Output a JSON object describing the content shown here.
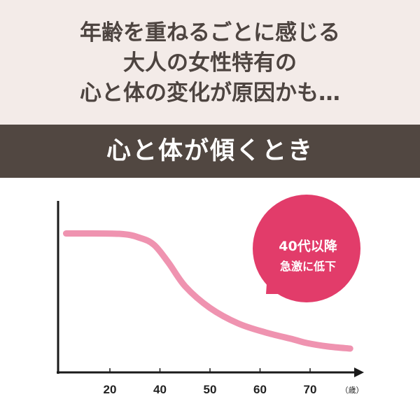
{
  "header": {
    "lines": [
      "年齢を重ねるごとに感じる",
      "大人の女性特有の",
      "心と体の変化が原因かも…"
    ]
  },
  "banner": {
    "title": "心と体が傾くとき"
  },
  "callout": {
    "line1": "40代以降",
    "line2": "急激に低下",
    "color": "#e23c6a"
  },
  "chart_data": {
    "type": "line",
    "title": "",
    "xlabel": "",
    "ylabel": "",
    "x_unit": "（歳）",
    "x_ticks": [
      20,
      40,
      50,
      60,
      70
    ],
    "y_ticks": [],
    "grid": false,
    "line_color": "#ef93b0",
    "series": [
      {
        "x": [
          2.5,
          23.7,
          32.1,
          37.7,
          41.7,
          45.1,
          50,
          55.6,
          61.1,
          66.7,
          69.4,
          73.6,
          78
        ],
        "y": [
          81,
          80.8,
          78.4,
          74.3,
          64,
          50,
          37.6,
          28.6,
          23.3,
          19.2,
          17.1,
          15.1,
          13.9
        ]
      }
    ]
  }
}
